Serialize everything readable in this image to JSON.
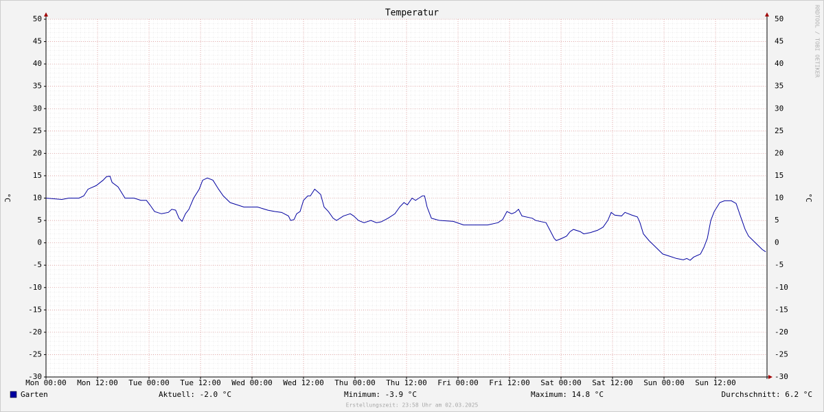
{
  "chart_data": {
    "type": "line",
    "title": "Temperatur",
    "y_label": "°C",
    "watermark": "RRDTOOL / TOBI OETIKER",
    "footer": "Erstellungszeit: 23:58 Uhr am 02.03.2025",
    "xlim": [
      0,
      168
    ],
    "xticks": [
      {
        "value": 0,
        "label": "Mon 00:00"
      },
      {
        "value": 12,
        "label": "Mon 12:00"
      },
      {
        "value": 24,
        "label": "Tue 00:00"
      },
      {
        "value": 36,
        "label": "Tue 12:00"
      },
      {
        "value": 48,
        "label": "Wed 00:00"
      },
      {
        "value": 60,
        "label": "Wed 12:00"
      },
      {
        "value": 72,
        "label": "Thu 00:00"
      },
      {
        "value": 84,
        "label": "Thu 12:00"
      },
      {
        "value": 96,
        "label": "Fri 00:00"
      },
      {
        "value": 108,
        "label": "Fri 12:00"
      },
      {
        "value": 120,
        "label": "Sat 00:00"
      },
      {
        "value": 132,
        "label": "Sat 12:00"
      },
      {
        "value": 144,
        "label": "Sun 00:00"
      },
      {
        "value": 156,
        "label": "Sun 12:00"
      }
    ],
    "ylim": [
      -30,
      50
    ],
    "yticks": [
      -30,
      -25,
      -20,
      -15,
      -10,
      -5,
      0,
      5,
      10,
      15,
      20,
      25,
      30,
      35,
      40,
      45,
      50
    ],
    "grid": true,
    "x": [
      0,
      3.7,
      5.3,
      7.7,
      8.8,
      9.8,
      11.7,
      13.3,
      14.1,
      14.9,
      15.4,
      16.8,
      18.4,
      20.5,
      22.1,
      23.4,
      24.2,
      25.3,
      26.9,
      28.5,
      29.3,
      30.2,
      31.0,
      31.7,
      32.5,
      33.3,
      34.4,
      35.7,
      36.5,
      37.6,
      38.9,
      40.2,
      41.3,
      42.9,
      44.5,
      46.1,
      49.3,
      51.7,
      53.3,
      54.9,
      56.5,
      57.0,
      57.8,
      58.4,
      59.2,
      60.0,
      61.0,
      61.6,
      62.6,
      63.2,
      64.0,
      64.8,
      65.8,
      66.9,
      67.7,
      69.3,
      70.9,
      71.7,
      72.8,
      74.1,
      75.7,
      77.0,
      78.1,
      79.7,
      81.3,
      82.4,
      83.4,
      84.2,
      85.3,
      86.1,
      86.9,
      87.7,
      88.2,
      88.8,
      89.8,
      91.7,
      94.9,
      97.3,
      99.7,
      102.9,
      105.3,
      106.4,
      107.4,
      108.5,
      109.3,
      110.1,
      110.9,
      113.3,
      114.1,
      116.5,
      117.6,
      118.4,
      118.9,
      120.2,
      121.3,
      122.1,
      122.9,
      124.5,
      125.3,
      126.9,
      128.5,
      129.8,
      130.9,
      131.7,
      132.5,
      134.1,
      134.9,
      136.5,
      137.8,
      138.4,
      139.2,
      140.5,
      142.1,
      143.7,
      145.3,
      146.9,
      148.5,
      149.3,
      150.1,
      150.9,
      152.5,
      153.3,
      154.1,
      154.9,
      155.7,
      157.0,
      158.1,
      159.7,
      160.8,
      161.8,
      162.9,
      163.7,
      165.3,
      166.9,
      167.7
    ],
    "series": [
      {
        "name": "Garten",
        "color": "#0000a0",
        "values": [
          10.0,
          9.7,
          10.0,
          10.0,
          10.5,
          12,
          12.8,
          14,
          14.8,
          14.9,
          13.5,
          12.5,
          10,
          10,
          9.5,
          9.5,
          8.5,
          7,
          6.5,
          6.8,
          7.5,
          7.3,
          5.5,
          4.8,
          6.5,
          7.5,
          10,
          12,
          14,
          14.5,
          14,
          12,
          10.5,
          9,
          8.5,
          8,
          8,
          7.3,
          7,
          6.8,
          6,
          5,
          5.2,
          6.5,
          7,
          9.5,
          10.5,
          10.5,
          12,
          11.5,
          10.8,
          8,
          7,
          5.5,
          5,
          6,
          6.5,
          6,
          5,
          4.5,
          5,
          4.5,
          4.7,
          5.5,
          6.5,
          8,
          9,
          8.5,
          10,
          9.5,
          10,
          10.5,
          10.5,
          8,
          5.5,
          5,
          4.8,
          4,
          4,
          4,
          4.5,
          5.2,
          7,
          6.5,
          6.8,
          7.5,
          6,
          5.5,
          5,
          4.5,
          2.5,
          1,
          0.5,
          1,
          1.5,
          2.5,
          3,
          2.5,
          2,
          2.3,
          2.8,
          3.5,
          5,
          6.8,
          6.2,
          6,
          6.8,
          6.2,
          5.8,
          4.5,
          2,
          0.5,
          -1,
          -2.5,
          -3,
          -3.5,
          -3.8,
          -3.5,
          -3.9,
          -3.2,
          -2.5,
          -1,
          1,
          5,
          7,
          9,
          9.4,
          9.4,
          8.8,
          6,
          3,
          1.5,
          0,
          -1.5,
          -2
        ]
      }
    ],
    "stats": [
      "Aktuell: -2.0 °C",
      "Minimum: -3.9 °C",
      "Maximum: 14.8 °C",
      "Durchschnitt: 6.2 °C"
    ]
  }
}
